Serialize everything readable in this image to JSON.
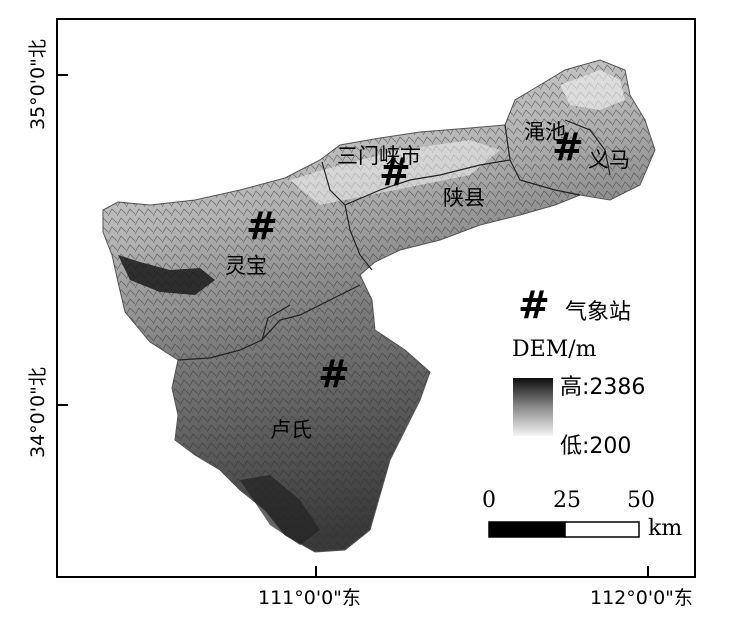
{
  "axes": {
    "lat_labels": [
      "35°0'0\"北",
      "34°0'0\"北"
    ],
    "lon_labels": [
      "111°0'0\"东",
      "112°0'0\"东"
    ]
  },
  "places": {
    "sanmenxia": "三门峡市",
    "mianchi": "渑池",
    "yima": "义马",
    "shanxian": "陕县",
    "lingbao": "灵宝",
    "lushi": "卢氏"
  },
  "station_symbol": "#",
  "legend": {
    "station_label": "气象站",
    "dem_title": "DEM/m",
    "high_label": "高:2386",
    "low_label": "低:200",
    "high_color": "#0d0d0d",
    "low_color": "#f5f5f5"
  },
  "scale_bar": {
    "ticks": [
      "0",
      "25",
      "50"
    ],
    "unit": "km"
  }
}
